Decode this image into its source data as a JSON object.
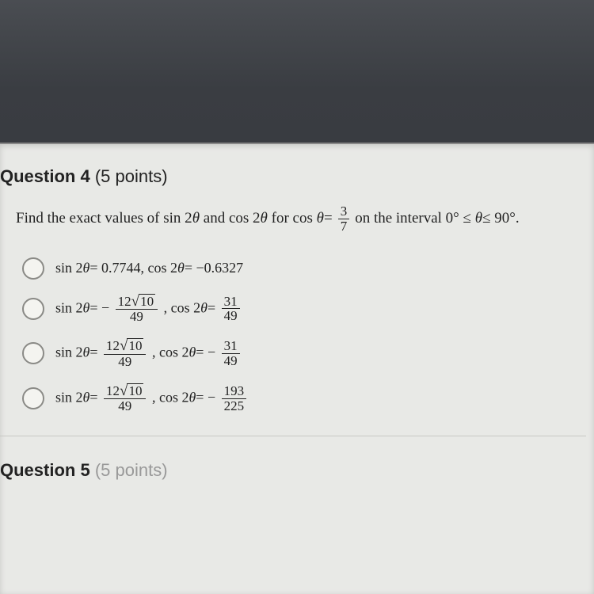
{
  "question4": {
    "label_word": "Question 4",
    "points": "(5 points)",
    "prompt_lead": "Find the exact values of sin 2",
    "prompt_and": " and cos 2",
    "prompt_for": " for cos ",
    "prompt_eq": "=",
    "frac_top": "3",
    "frac_bot": "7",
    "prompt_tail": " on the interval 0° ≤ ",
    "prompt_tail2": "≤ 90°.",
    "options": [
      {
        "plain": "sin 2θ= 0.7744, cos 2θ= −0.6327"
      },
      {
        "sin_sign": "−",
        "sin_num_coeff": "12",
        "sin_num_rad": "10",
        "sin_den": "49",
        "cos_sign": "",
        "cos_num": "31",
        "cos_den": "49"
      },
      {
        "sin_sign": "",
        "sin_num_coeff": "12",
        "sin_num_rad": "10",
        "sin_den": "49",
        "cos_sign": "−",
        "cos_num": "31",
        "cos_den": "49"
      },
      {
        "sin_sign": "",
        "sin_num_coeff": "12",
        "sin_num_rad": "10",
        "sin_den": "49",
        "cos_sign": "−",
        "cos_num": "193",
        "cos_den": "225"
      }
    ]
  },
  "question5": {
    "label_word": "Question 5",
    "points": "(5 points)"
  },
  "theta": "θ"
}
